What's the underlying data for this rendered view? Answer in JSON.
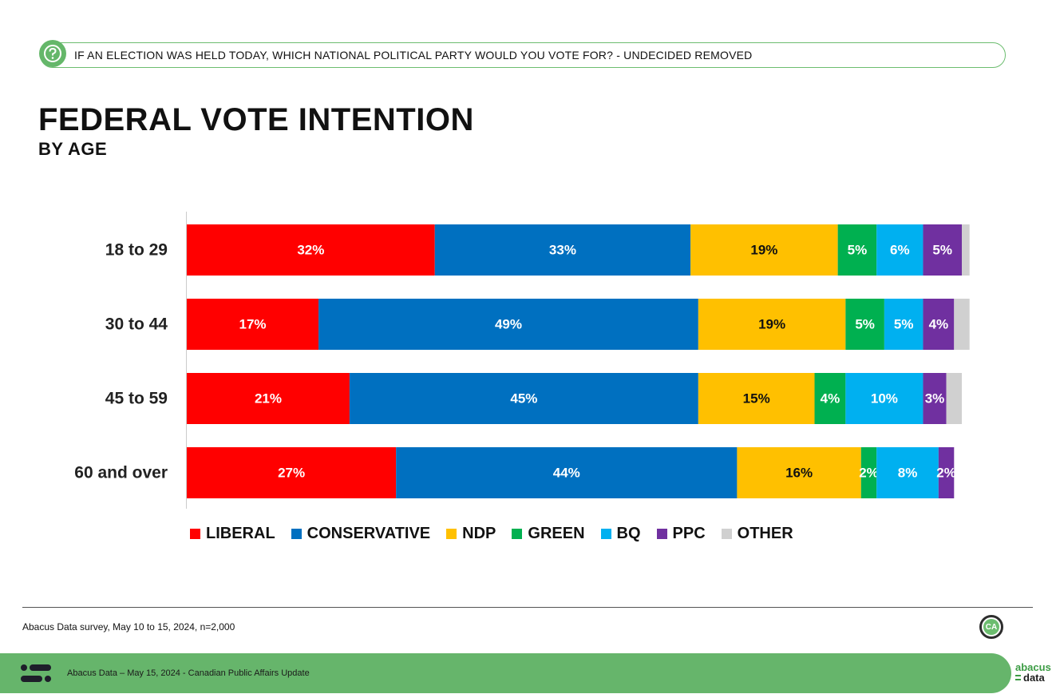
{
  "header": {
    "question": "IF AN ELECTION WAS HELD TODAY, WHICH NATIONAL POLITICAL PARTY WOULD YOU VOTE FOR? - UNDECIDED REMOVED",
    "title": "FEDERAL VOTE INTENTION",
    "subtitle": "BY AGE"
  },
  "colors": {
    "LIBERAL": "#ff0000",
    "CONSERVATIVE": "#0070c0",
    "NDP": "#ffc000",
    "GREEN": "#00b050",
    "BQ": "#00b0f0",
    "PPC": "#7030a0",
    "OTHER": "#d0d0d0",
    "accent": "#66b56b"
  },
  "chart_data": {
    "type": "bar",
    "orientation": "horizontal",
    "stacked": true,
    "title": "FEDERAL VOTE INTENTION",
    "subtitle": "BY AGE",
    "categories": [
      "18 to 29",
      "30 to 44",
      "45 to 59",
      "60 and over"
    ],
    "series": [
      {
        "name": "LIBERAL",
        "values": [
          32,
          17,
          21,
          27
        ],
        "labels": [
          "32%",
          "17%",
          "21%",
          "27%"
        ]
      },
      {
        "name": "CONSERVATIVE",
        "values": [
          33,
          49,
          45,
          44
        ],
        "labels": [
          "33%",
          "49%",
          "45%",
          "44%"
        ]
      },
      {
        "name": "NDP",
        "values": [
          19,
          19,
          15,
          16
        ],
        "labels": [
          "19%",
          "19%",
          "15%",
          "16%"
        ]
      },
      {
        "name": "GREEN",
        "values": [
          5,
          5,
          4,
          2
        ],
        "labels": [
          "5%",
          "5%",
          "4%",
          "2%"
        ]
      },
      {
        "name": "BQ",
        "values": [
          6,
          5,
          10,
          8
        ],
        "labels": [
          "6%",
          "5%",
          "10%",
          "8%"
        ]
      },
      {
        "name": "PPC",
        "values": [
          5,
          4,
          3,
          2
        ],
        "labels": [
          "5%",
          "4%",
          "3%",
          "2%"
        ]
      },
      {
        "name": "OTHER",
        "values": [
          1,
          2,
          2,
          0
        ],
        "labels": [
          "",
          "",
          "",
          ""
        ]
      }
    ],
    "xlim": [
      0,
      100
    ],
    "grid": false,
    "legend_position": "bottom"
  },
  "footer": {
    "source": "Abacus Data survey,  May 10 to 15, 2024, n=2,000",
    "band_text": "Abacus  Data – May 15, 2024 - Canadian Public Affairs Update",
    "ca_badge": "CA",
    "brand_top": "abacus",
    "brand_bottom": "data"
  }
}
